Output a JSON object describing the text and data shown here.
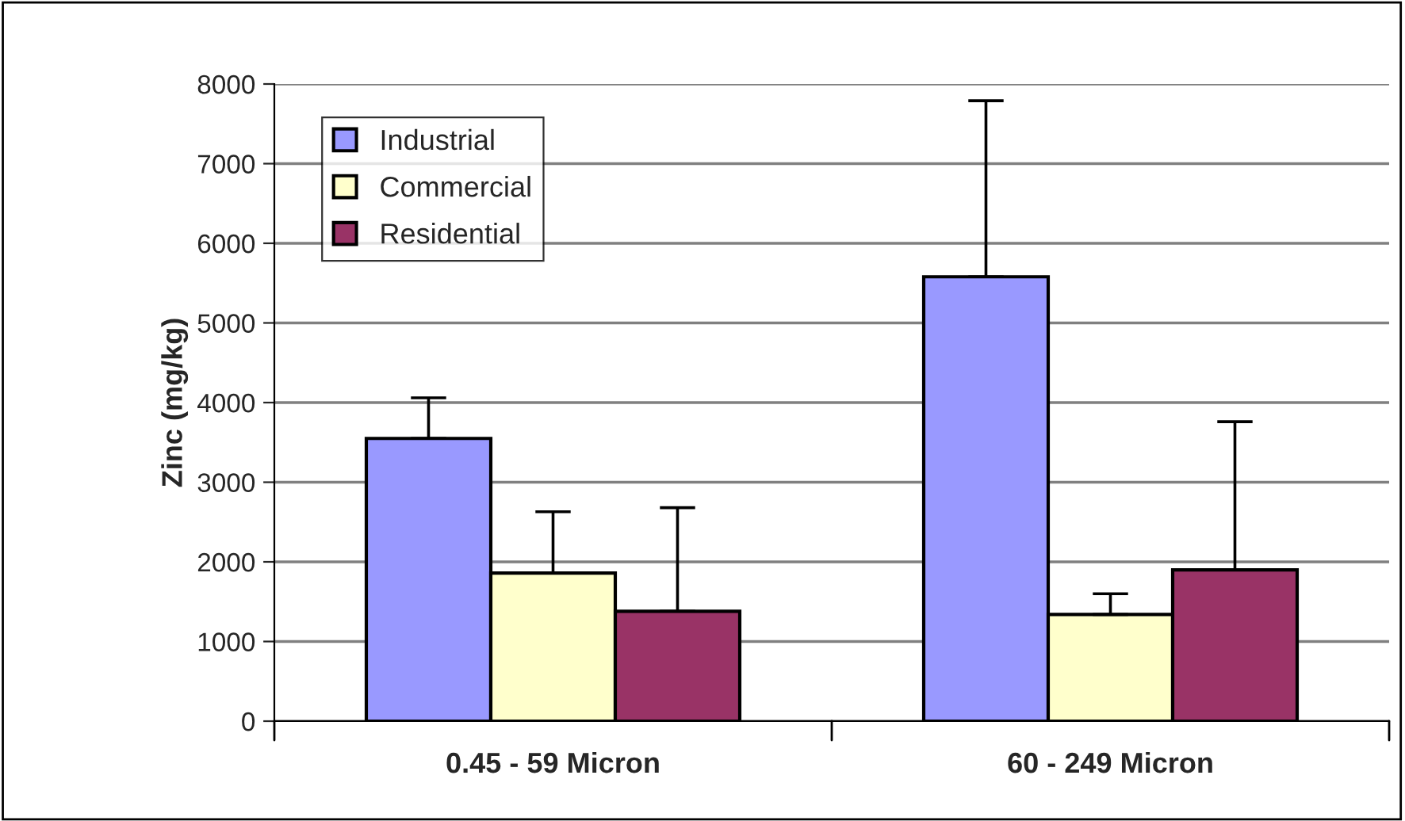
{
  "chart_data": {
    "type": "bar",
    "ylabel": "Zinc (mg/kg)",
    "categories": [
      "0.45 - 59 Micron",
      "60 - 249 Micron"
    ],
    "series": [
      {
        "name": "Industrial",
        "color": "#9999ff",
        "values": [
          3550,
          5580
        ],
        "errors": [
          [
            3550,
            4060
          ],
          [
            5580,
            7790
          ]
        ]
      },
      {
        "name": "Commercial",
        "color": "#ffffcc",
        "values": [
          1860,
          1340
        ],
        "errors": [
          [
            1860,
            2630
          ],
          [
            1340,
            1600
          ]
        ]
      },
      {
        "name": "Residential",
        "color": "#993366",
        "values": [
          1380,
          1900
        ],
        "errors": [
          [
            1380,
            2680
          ],
          [
            1900,
            3760
          ]
        ]
      }
    ],
    "ylim": [
      0,
      8000
    ],
    "yticks": [
      0,
      1000,
      2000,
      3000,
      4000,
      5000,
      6000,
      7000,
      8000
    ],
    "grid": "y",
    "legend": "top left"
  }
}
